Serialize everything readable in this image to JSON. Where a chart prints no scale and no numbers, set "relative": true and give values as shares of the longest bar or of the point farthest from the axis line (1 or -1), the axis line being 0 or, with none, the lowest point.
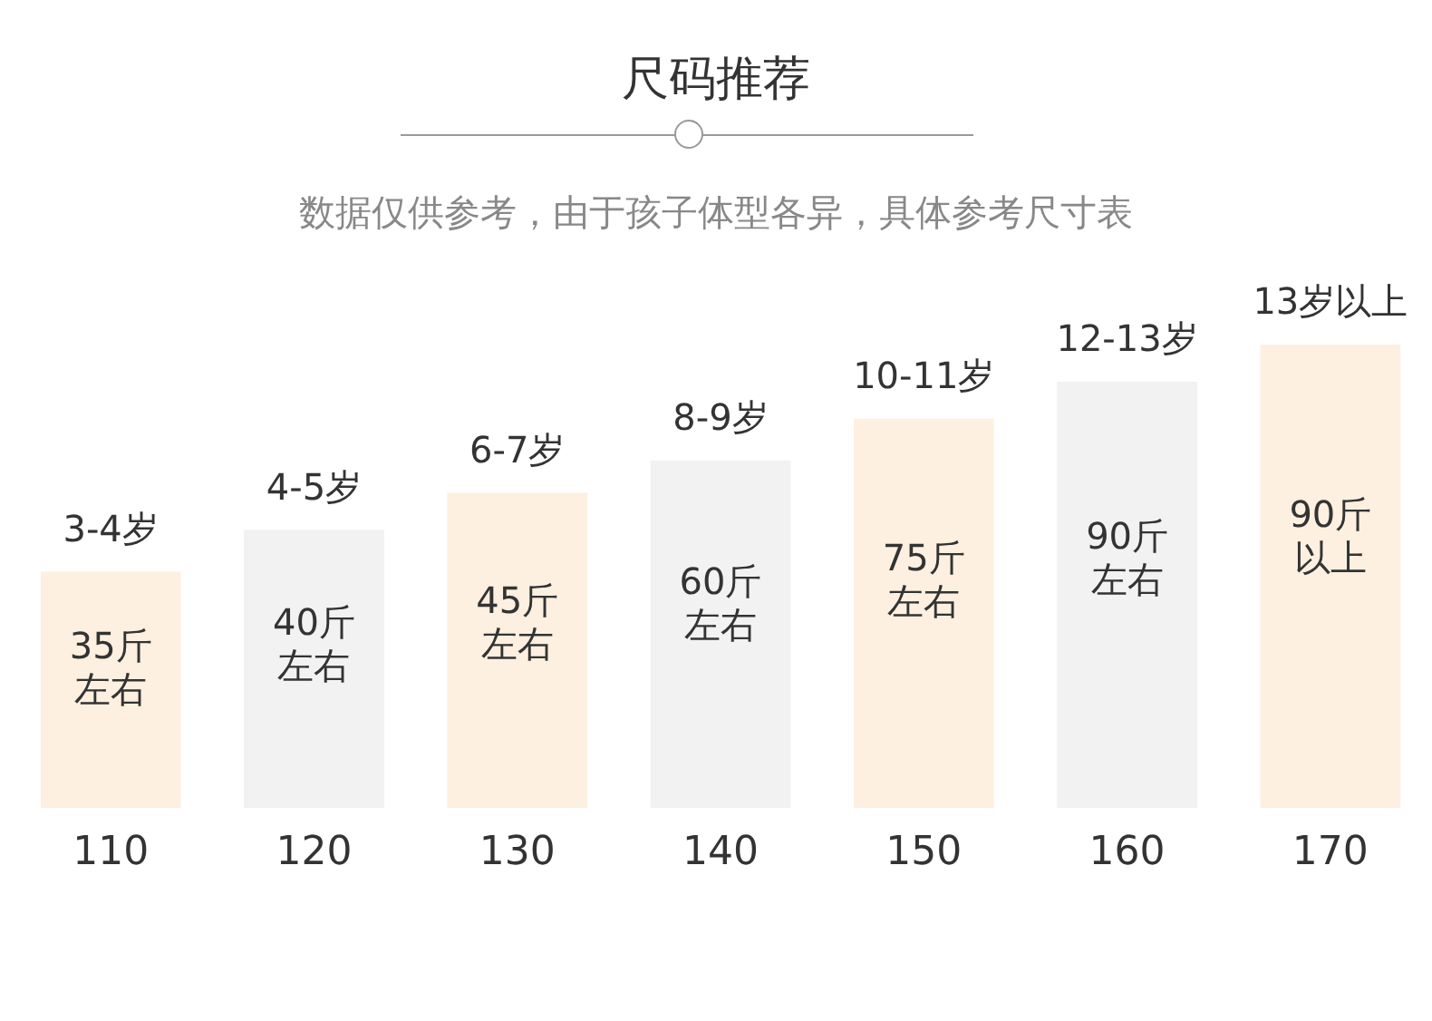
{
  "chart_data": {
    "type": "bar",
    "title": "尺码推荐",
    "subtitle": "数据仅供参考，由于孩子体型各异，具体参考尺寸表",
    "relative": true,
    "categories": [
      "110",
      "120",
      "130",
      "140",
      "150",
      "160",
      "170"
    ],
    "values": [
      0.51,
      0.6,
      0.68,
      0.75,
      0.84,
      0.92,
      1
    ],
    "colors": [
      "#fdf0e0",
      "#f2f2f2",
      "#fdf0e0",
      "#f2f2f2",
      "#fdf0e0",
      "#f2f2f2",
      "#fdf0e0"
    ],
    "annotations": [
      {
        "text": "3-4岁",
        "x": "110",
        "y": 0.51
      },
      {
        "text": "4-5岁",
        "x": "120",
        "y": 0.6
      },
      {
        "text": "6-7岁",
        "x": "130",
        "y": 0.68
      },
      {
        "text": "8-9岁",
        "x": "140",
        "y": 0.75
      },
      {
        "text": "10-11岁",
        "x": "150",
        "y": 0.84
      },
      {
        "text": "12-13岁",
        "x": "160",
        "y": 0.92
      },
      {
        "text": "13岁以上",
        "x": "170",
        "y": 1
      },
      "35斤左右",
      "40斤左右",
      "45斤左右",
      "60斤左右",
      "75斤左右",
      "90斤左右",
      "90斤以上"
    ],
    "grid": false,
    "legend": false
  }
}
